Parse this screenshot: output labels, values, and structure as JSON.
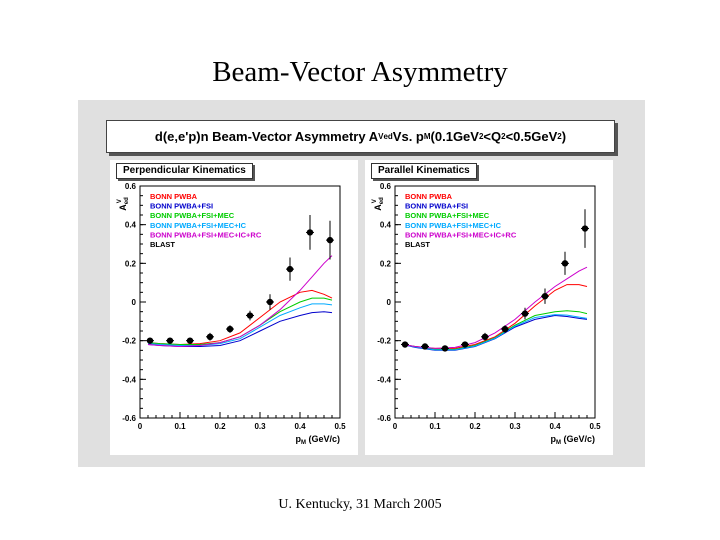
{
  "slide": {
    "title": "Beam-Vector Asymmetry",
    "footer": "U. Kentucky, 31 March 2005"
  },
  "figure": {
    "header": {
      "prefix": "d(e,e'p)n Beam-Vector Asymmetry A",
      "a_sup": "V",
      "a_sub": "ed",
      "vs": " Vs. p",
      "p_sub": "M",
      "range_a": " (0.1GeV",
      "q_sup1": "2",
      "range_b": "<Q",
      "q_sup2": "2",
      "range_c": "<0.5GeV",
      "q_sup3": "2",
      "range_d": ")"
    }
  },
  "chart_data": [
    {
      "type": "line",
      "title": "Perpendicular Kinematics",
      "xlabel": "p_M (GeV/c)",
      "ylabel": "A_ed^V",
      "xlim": [
        0,
        0.5
      ],
      "ylim": [
        -0.6,
        0.6
      ],
      "xticks": [
        "0",
        "0.1",
        "0.2",
        "0.3",
        "0.4",
        "0.5"
      ],
      "yticks": [
        "-0.6",
        "-0.4",
        "-0.2",
        "0",
        "0.2",
        "0.4",
        "0.6"
      ],
      "legend_position": "top-left",
      "series": [
        {
          "name": "BONN PWBA",
          "color": "#ff0000",
          "x": [
            0.02,
            0.05,
            0.1,
            0.15,
            0.2,
            0.25,
            0.3,
            0.35,
            0.4,
            0.43,
            0.46,
            0.48
          ],
          "y": [
            -0.21,
            -0.215,
            -0.22,
            -0.215,
            -0.2,
            -0.16,
            -0.08,
            0.0,
            0.05,
            0.06,
            0.04,
            0.02
          ]
        },
        {
          "name": "BONN PWBA+FSI",
          "color": "#0000cc",
          "x": [
            0.02,
            0.05,
            0.1,
            0.15,
            0.2,
            0.25,
            0.3,
            0.35,
            0.4,
            0.43,
            0.46,
            0.48
          ],
          "y": [
            -0.22,
            -0.225,
            -0.23,
            -0.23,
            -0.225,
            -0.2,
            -0.15,
            -0.1,
            -0.07,
            -0.055,
            -0.05,
            -0.055
          ]
        },
        {
          "name": "BONN PWBA+FSI+MEC",
          "color": "#00cc00",
          "x": [
            0.02,
            0.05,
            0.1,
            0.15,
            0.2,
            0.25,
            0.3,
            0.35,
            0.4,
            0.43,
            0.46,
            0.48
          ],
          "y": [
            -0.21,
            -0.215,
            -0.22,
            -0.22,
            -0.21,
            -0.18,
            -0.12,
            -0.05,
            0.0,
            0.02,
            0.02,
            0.01
          ]
        },
        {
          "name": "BONN PWBA+FSI+MEC+IC",
          "color": "#00aaff",
          "x": [
            0.02,
            0.05,
            0.1,
            0.15,
            0.2,
            0.25,
            0.3,
            0.35,
            0.4,
            0.43,
            0.46,
            0.48
          ],
          "y": [
            -0.215,
            -0.22,
            -0.225,
            -0.225,
            -0.215,
            -0.19,
            -0.13,
            -0.07,
            -0.03,
            -0.01,
            -0.01,
            -0.015
          ]
        },
        {
          "name": "BONN PWBA+FSI+MEC+IC+RC",
          "color": "#cc00cc",
          "x": [
            0.02,
            0.05,
            0.1,
            0.15,
            0.2,
            0.25,
            0.3,
            0.35,
            0.4,
            0.43,
            0.46,
            0.48
          ],
          "y": [
            -0.22,
            -0.225,
            -0.23,
            -0.225,
            -0.21,
            -0.18,
            -0.12,
            -0.04,
            0.06,
            0.13,
            0.2,
            0.24
          ]
        },
        {
          "name": "BLAST",
          "color": "#000000",
          "kind": "points",
          "x": [
            0.025,
            0.075,
            0.125,
            0.175,
            0.225,
            0.275,
            0.325,
            0.375,
            0.425,
            0.475
          ],
          "y": [
            -0.2,
            -0.2,
            -0.2,
            -0.18,
            -0.14,
            -0.07,
            0.0,
            0.17,
            0.36,
            0.32
          ],
          "err": [
            0.015,
            0.015,
            0.015,
            0.02,
            0.02,
            0.025,
            0.04,
            0.06,
            0.09,
            0.1
          ]
        }
      ]
    },
    {
      "type": "line",
      "title": "Parallel Kinematics",
      "xlabel": "p_M (GeV/c)",
      "ylabel": "A_ed^V",
      "xlim": [
        0,
        0.5
      ],
      "ylim": [
        -0.6,
        0.6
      ],
      "xticks": [
        "0",
        "0.1",
        "0.2",
        "0.3",
        "0.4",
        "0.5"
      ],
      "yticks": [
        "-0.6",
        "-0.4",
        "-0.2",
        "0",
        "0.2",
        "0.4",
        "0.6"
      ],
      "legend_position": "top-left",
      "series": [
        {
          "name": "BONN PWBA",
          "color": "#ff0000",
          "x": [
            0.02,
            0.05,
            0.1,
            0.15,
            0.2,
            0.25,
            0.3,
            0.35,
            0.4,
            0.43,
            0.46,
            0.48
          ],
          "y": [
            -0.22,
            -0.23,
            -0.24,
            -0.24,
            -0.22,
            -0.18,
            -0.11,
            -0.02,
            0.06,
            0.09,
            0.09,
            0.08
          ]
        },
        {
          "name": "BONN PWBA+FSI",
          "color": "#0000cc",
          "x": [
            0.02,
            0.05,
            0.1,
            0.15,
            0.2,
            0.25,
            0.3,
            0.35,
            0.4,
            0.43,
            0.46,
            0.48
          ],
          "y": [
            -0.22,
            -0.235,
            -0.25,
            -0.25,
            -0.23,
            -0.19,
            -0.13,
            -0.09,
            -0.07,
            -0.075,
            -0.085,
            -0.09
          ]
        },
        {
          "name": "BONN PWBA+FSI+MEC",
          "color": "#00cc00",
          "x": [
            0.02,
            0.05,
            0.1,
            0.15,
            0.2,
            0.25,
            0.3,
            0.35,
            0.4,
            0.43,
            0.46,
            0.48
          ],
          "y": [
            -0.22,
            -0.23,
            -0.245,
            -0.245,
            -0.225,
            -0.185,
            -0.12,
            -0.07,
            -0.05,
            -0.045,
            -0.05,
            -0.06
          ]
        },
        {
          "name": "BONN PWBA+FSI+MEC+IC",
          "color": "#00aaff",
          "x": [
            0.02,
            0.05,
            0.1,
            0.15,
            0.2,
            0.25,
            0.3,
            0.35,
            0.4,
            0.43,
            0.46,
            0.48
          ],
          "y": [
            -0.22,
            -0.233,
            -0.248,
            -0.248,
            -0.228,
            -0.188,
            -0.125,
            -0.08,
            -0.065,
            -0.068,
            -0.078,
            -0.085
          ]
        },
        {
          "name": "BONN PWBA+FSI+MEC+IC+RC",
          "color": "#cc00cc",
          "x": [
            0.02,
            0.05,
            0.1,
            0.15,
            0.2,
            0.25,
            0.3,
            0.35,
            0.4,
            0.43,
            0.46,
            0.48
          ],
          "y": [
            -0.22,
            -0.23,
            -0.24,
            -0.235,
            -0.21,
            -0.16,
            -0.09,
            0.0,
            0.08,
            0.12,
            0.16,
            0.18
          ]
        },
        {
          "name": "BLAST",
          "color": "#000000",
          "kind": "points",
          "x": [
            0.025,
            0.075,
            0.125,
            0.175,
            0.225,
            0.275,
            0.325,
            0.375,
            0.425,
            0.475
          ],
          "y": [
            -0.22,
            -0.23,
            -0.24,
            -0.22,
            -0.18,
            -0.14,
            -0.06,
            0.03,
            0.2,
            0.38
          ],
          "err": [
            0.015,
            0.015,
            0.015,
            0.015,
            0.02,
            0.02,
            0.03,
            0.04,
            0.06,
            0.1
          ]
        }
      ]
    }
  ]
}
